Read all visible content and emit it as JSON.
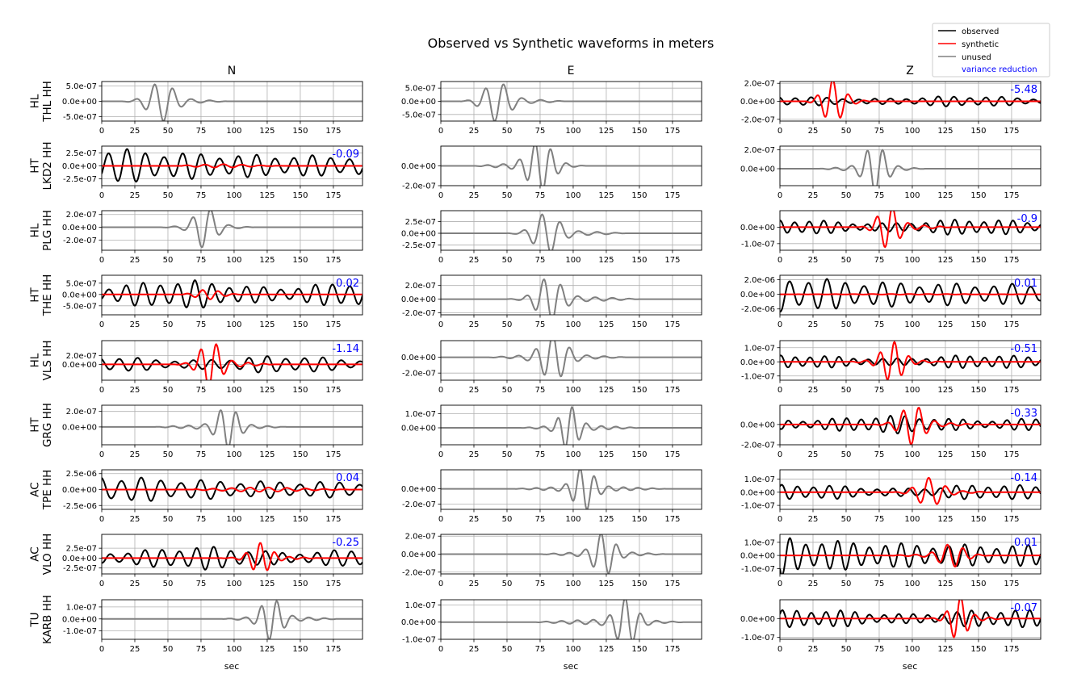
{
  "chart_data": {
    "type": "line",
    "title": "Observed vs Synthetic waveforms in meters",
    "columns": [
      "N",
      "E",
      "Z"
    ],
    "xlabel": "sec",
    "xlim": [
      0,
      197
    ],
    "xticks": [
      0,
      25,
      50,
      75,
      100,
      125,
      150,
      175
    ],
    "grid": true,
    "legend": {
      "placement": "top-right",
      "entries": [
        {
          "label": "observed",
          "color": "#000000"
        },
        {
          "label": "synthetic",
          "color": "#ff0000"
        },
        {
          "label": "unused",
          "color": "#808080"
        },
        {
          "label": "variance reduction",
          "color": "#0000ff"
        }
      ]
    },
    "colors": {
      "observed": "#000000",
      "synthetic": "#ff0000",
      "unused": "#808080",
      "variance_reduction": "#0000ff",
      "grid": "#b0b0b0"
    },
    "rows": [
      {
        "network": "HL",
        "station": "THL HH",
        "panels": [
          {
            "ylim": [
              -6.5e-07,
              6.5e-07
            ],
            "yticks": [
              "5.0e-07",
              "0.0e+00",
              "-5.0e-07"
            ],
            "ytickvals": [
              5e-07,
              0,
              -5e-07
            ],
            "used": false,
            "vr": "",
            "obs": {
              "start": 15,
              "end": 95,
              "center": 45,
              "width": 12,
              "amp": 6e-07,
              "period": 14
            },
            "syn": null
          },
          {
            "ylim": [
              -7.5e-07,
              7.5e-07
            ],
            "yticks": [
              "5.0e-07",
              "0.0e+00",
              "-5.0e-07"
            ],
            "ytickvals": [
              5e-07,
              0,
              -5e-07
            ],
            "used": false,
            "vr": "",
            "obs": {
              "start": 15,
              "end": 95,
              "center": 42,
              "width": 12,
              "amp": 7e-07,
              "period": 14
            },
            "syn": null
          },
          {
            "ylim": [
              -2.2e-07,
              2.2e-07
            ],
            "yticks": [
              "2.0e-07",
              "0.0e+00",
              "-2.0e-07"
            ],
            "ytickvals": [
              2e-07,
              0,
              -2e-07
            ],
            "used": true,
            "vr": "-5.48",
            "obs": {
              "amp": 6e-08,
              "period": 12
            },
            "syn": {
              "start": 20,
              "end": 70,
              "center": 40,
              "width": 10,
              "amp": 2.2e-07,
              "period": 12
            }
          }
        ]
      },
      {
        "network": "HT",
        "station": "LKD2 HH",
        "panels": [
          {
            "ylim": [
              -3.8e-07,
              3.8e-07
            ],
            "yticks": [
              "2.5e-07",
              "0.0e+00",
              "-2.5e-07"
            ],
            "ytickvals": [
              2.5e-07,
              0,
              -2.5e-07
            ],
            "used": true,
            "vr": "-0.09",
            "obs": {
              "amp": 3.5e-07,
              "period": 14,
              "decay": true
            },
            "syn": {
              "start": 60,
              "end": 140,
              "center": 90,
              "width": 25,
              "amp": 3e-08,
              "period": 14
            }
          },
          {
            "ylim": [
              -2e-07,
              2e-07
            ],
            "yticks": [
              "0.0e+00",
              "-2.0e-07"
            ],
            "ytickvals": [
              0,
              -2e-07
            ],
            "used": false,
            "vr": "",
            "obs": {
              "start": 25,
              "end": 110,
              "center": 75,
              "width": 12,
              "amp": 2.3e-07,
              "period": 12
            },
            "syn": null
          },
          {
            "ylim": [
              -1.8e-07,
              2.4e-07
            ],
            "yticks": [
              "2.0e-07",
              "0.0e+00"
            ],
            "ytickvals": [
              2e-07,
              0
            ],
            "used": false,
            "vr": "",
            "obs": {
              "start": 30,
              "end": 110,
              "center": 72,
              "width": 10,
              "amp": 2.4e-07,
              "period": 12
            },
            "syn": null
          }
        ]
      },
      {
        "network": "HL",
        "station": "PLG HH",
        "panels": [
          {
            "ylim": [
              -3.6e-07,
              2.6e-07
            ],
            "yticks": [
              "2.0e-07",
              "0.0e+00",
              "-2.0e-07"
            ],
            "ytickvals": [
              2e-07,
              0,
              -2e-07
            ],
            "used": false,
            "vr": "",
            "obs": {
              "start": 45,
              "end": 115,
              "center": 78,
              "width": 10,
              "amp": 3e-07,
              "period": 14
            },
            "syn": null
          },
          {
            "ylim": [
              -3.6e-07,
              4.8e-07
            ],
            "yticks": [
              "2.5e-07",
              "0.0e+00",
              "-2.5e-07"
            ],
            "ytickvals": [
              2.5e-07,
              0,
              -2.5e-07
            ],
            "used": false,
            "vr": "",
            "obs": {
              "start": 50,
              "end": 140,
              "center": 80,
              "width": 12,
              "amp": 4e-07,
              "period": 14
            },
            "syn": null
          },
          {
            "ylim": [
              -1.4e-07,
              1e-07
            ],
            "yticks": [
              "0.0e+00",
              "-1.0e-07"
            ],
            "ytickvals": [
              0,
              -1e-07
            ],
            "used": true,
            "vr": "-0.9",
            "obs": {
              "amp": 5e-08,
              "period": 11
            },
            "syn": {
              "start": 60,
              "end": 130,
              "center": 82,
              "width": 10,
              "amp": 1.2e-07,
              "period": 12
            }
          }
        ]
      },
      {
        "network": "HT",
        "station": "THE HH",
        "panels": [
          {
            "ylim": [
              -9e-07,
              8.5e-07
            ],
            "yticks": [
              "5.0e-07",
              "0.0e+00",
              "-5.0e-07"
            ],
            "ytickvals": [
              5e-07,
              0,
              -5e-07
            ],
            "used": true,
            "vr": "0.02",
            "obs": {
              "amp": 6.5e-07,
              "period": 13
            },
            "syn": {
              "start": 60,
              "end": 110,
              "center": 80,
              "width": 12,
              "amp": 2e-07,
              "period": 12
            }
          },
          {
            "ylim": [
              -2.3e-07,
              3.5e-07
            ],
            "yticks": [
              "2.0e-07",
              "0.0e+00",
              "-2.0e-07"
            ],
            "ytickvals": [
              2e-07,
              0,
              -2e-07
            ],
            "used": false,
            "vr": "",
            "obs": {
              "start": 50,
              "end": 150,
              "center": 82,
              "width": 12,
              "amp": 3e-07,
              "period": 13
            },
            "syn": null
          },
          {
            "ylim": [
              -2.8e-06,
              2.6e-06
            ],
            "yticks": [
              "2.0e-06",
              "0.0e+00",
              "-2.0e-06"
            ],
            "ytickvals": [
              2e-06,
              0,
              -2e-06
            ],
            "used": true,
            "vr": "0.01",
            "obs": {
              "amp": 2.5e-06,
              "period": 14,
              "decay": true
            },
            "syn": {
              "start": 10,
              "end": 190,
              "center": 100,
              "width": 60,
              "amp": 4e-08,
              "period": 14
            }
          }
        ]
      },
      {
        "network": "HL",
        "station": "VLS HH",
        "panels": [
          {
            "ylim": [
              -3.6e-07,
              5.4e-07
            ],
            "yticks": [
              "2.0e-07",
              "0.0e+00"
            ],
            "ytickvals": [
              2e-07,
              0
            ],
            "used": true,
            "vr": "-1.14",
            "obs": {
              "amp": 2e-07,
              "period": 14
            },
            "syn": {
              "start": 55,
              "end": 130,
              "center": 82,
              "width": 10,
              "amp": 5e-07,
              "period": 12
            }
          },
          {
            "ylim": [
              -2.9e-07,
              2.1e-07
            ],
            "yticks": [
              "0.0e+00",
              "-2.0e-07"
            ],
            "ytickvals": [
              0,
              -2e-07
            ],
            "used": false,
            "vr": "",
            "obs": {
              "start": 35,
              "end": 140,
              "center": 85,
              "width": 12,
              "amp": 2.7e-07,
              "period": 13
            },
            "syn": null
          },
          {
            "ylim": [
              -1.3e-07,
              1.5e-07
            ],
            "yticks": [
              "1.0e-07",
              "0.0e+00",
              "-1.0e-07"
            ],
            "ytickvals": [
              1e-07,
              0,
              -1e-07
            ],
            "used": true,
            "vr": "-0.51",
            "obs": {
              "amp": 5e-08,
              "period": 11
            },
            "syn": {
              "start": 50,
              "end": 125,
              "center": 85,
              "width": 10,
              "amp": 1.3e-07,
              "period": 11
            }
          }
        ]
      },
      {
        "network": "HT",
        "station": "GRG HH",
        "panels": [
          {
            "ylim": [
              -2.3e-07,
              2.8e-07
            ],
            "yticks": [
              "2.0e-07",
              "0.0e+00"
            ],
            "ytickvals": [
              2e-07,
              0
            ],
            "used": false,
            "vr": "",
            "obs": {
              "start": 40,
              "end": 140,
              "center": 95,
              "width": 10,
              "amp": 2.5e-07,
              "period": 12
            },
            "syn": null
          },
          {
            "ylim": [
              -1.2e-07,
              1.6e-07
            ],
            "yticks": [
              "1.0e-07",
              "0.0e+00"
            ],
            "ytickvals": [
              1e-07,
              0
            ],
            "used": false,
            "vr": "",
            "obs": {
              "start": 60,
              "end": 150,
              "center": 97,
              "width": 9,
              "amp": 1.4e-07,
              "period": 11
            },
            "syn": null
          },
          {
            "ylim": [
              -2e-07,
              1.9e-07
            ],
            "yticks": [
              "0.0e+00",
              "-2.0e-07"
            ],
            "ytickvals": [
              0,
              -2e-07
            ],
            "used": true,
            "vr": "-0.33",
            "obs": {
              "amp": 9e-08,
              "period": 11
            },
            "syn": {
              "start": 70,
              "end": 150,
              "center": 100,
              "width": 11,
              "amp": 1.8e-07,
              "period": 12
            }
          }
        ]
      },
      {
        "network": "AC",
        "station": "TPE HH",
        "panels": [
          {
            "ylim": [
              -3.1e-06,
              3.1e-06
            ],
            "yticks": [
              "2.5e-06",
              "0.0e+00",
              "-2.5e-06"
            ],
            "ytickvals": [
              2.5e-06,
              0,
              -2.5e-06
            ],
            "used": true,
            "vr": "0.04",
            "obs": {
              "amp": 2.2e-06,
              "period": 15,
              "decay": true
            },
            "syn": {
              "start": 70,
              "end": 190,
              "center": 120,
              "width": 40,
              "amp": 3e-07,
              "period": 14
            }
          },
          {
            "ylim": [
              -2.7e-07,
              2.5e-07
            ],
            "yticks": [
              "0.0e+00",
              "-2.0e-07"
            ],
            "ytickvals": [
              0,
              -2e-07
            ],
            "used": false,
            "vr": "",
            "obs": {
              "start": 55,
              "end": 170,
              "center": 108,
              "width": 10,
              "amp": 2.6e-07,
              "period": 11
            },
            "syn": null
          },
          {
            "ylim": [
              -1.3e-07,
              1.7e-07
            ],
            "yticks": [
              "1.0e-07",
              "0.0e+00",
              "-1.0e-07"
            ],
            "ytickvals": [
              1e-07,
              0,
              -1e-07
            ],
            "used": true,
            "vr": "-0.14",
            "obs": {
              "amp": 6e-08,
              "period": 12
            },
            "syn": {
              "start": 85,
              "end": 160,
              "center": 113,
              "width": 12,
              "amp": 1e-07,
              "period": 13
            }
          }
        ]
      },
      {
        "network": "AC",
        "station": "VLO HH",
        "panels": [
          {
            "ylim": [
              -4e-07,
              6e-07
            ],
            "yticks": [
              "2.5e-07",
              "0.0e+00",
              "-2.5e-07"
            ],
            "ytickvals": [
              2.5e-07,
              0,
              -2.5e-07
            ],
            "used": true,
            "vr": "-0.25",
            "obs": {
              "amp": 3e-07,
              "period": 13
            },
            "syn": {
              "start": 90,
              "end": 165,
              "center": 120,
              "width": 10,
              "amp": 3.5e-07,
              "period": 11
            }
          },
          {
            "ylim": [
              -2.2e-07,
              2.2e-07
            ],
            "yticks": [
              "2.0e-07",
              "0.0e+00",
              "-2.0e-07"
            ],
            "ytickvals": [
              2e-07,
              0,
              -2e-07
            ],
            "used": false,
            "vr": "",
            "obs": {
              "start": 75,
              "end": 170,
              "center": 123,
              "width": 10,
              "amp": 2.2e-07,
              "period": 12
            },
            "syn": null
          },
          {
            "ylim": [
              -1.4e-07,
              1.6e-07
            ],
            "yticks": [
              "1.0e-07",
              "0.0e+00",
              "-1.0e-07"
            ],
            "ytickvals": [
              1e-07,
              0,
              -1e-07
            ],
            "used": true,
            "vr": "0.01",
            "obs": {
              "amp": 1.4e-07,
              "period": 12,
              "decay": true
            },
            "syn": {
              "start": 80,
              "end": 160,
              "center": 130,
              "width": 12,
              "amp": 8e-08,
              "period": 12
            }
          }
        ]
      },
      {
        "network": "TU",
        "station": "KARB HH",
        "panels": [
          {
            "ylim": [
              -1.7e-07,
              1.6e-07
            ],
            "yticks": [
              "1.0e-07",
              "0.0e+00",
              "-1.0e-07"
            ],
            "ytickvals": [
              1e-07,
              0,
              -1e-07
            ],
            "used": false,
            "vr": "",
            "obs": {
              "start": 90,
              "end": 180,
              "center": 128,
              "width": 10,
              "amp": 1.6e-07,
              "period": 12
            },
            "syn": null
          },
          {
            "ylim": [
              -1e-07,
              1.3e-07
            ],
            "yticks": [
              "1.0e-07",
              "0.0e+00",
              "-1.0e-07"
            ],
            "ytickvals": [
              1e-07,
              0,
              -1e-07
            ],
            "used": false,
            "vr": "",
            "obs": {
              "start": 70,
              "end": 185,
              "center": 140,
              "width": 10,
              "amp": 1.3e-07,
              "period": 12
            },
            "syn": null
          },
          {
            "ylim": [
              -1.1e-07,
              1e-07
            ],
            "yticks": [
              "0.0e+00",
              "-1.0e-07"
            ],
            "ytickvals": [
              0,
              -1e-07
            ],
            "used": true,
            "vr": "-0.07",
            "obs": {
              "amp": 5e-08,
              "period": 11
            },
            "syn": {
              "start": 110,
              "end": 170,
              "center": 135,
              "width": 8,
              "amp": 1.1e-07,
              "period": 11
            }
          }
        ]
      }
    ]
  }
}
